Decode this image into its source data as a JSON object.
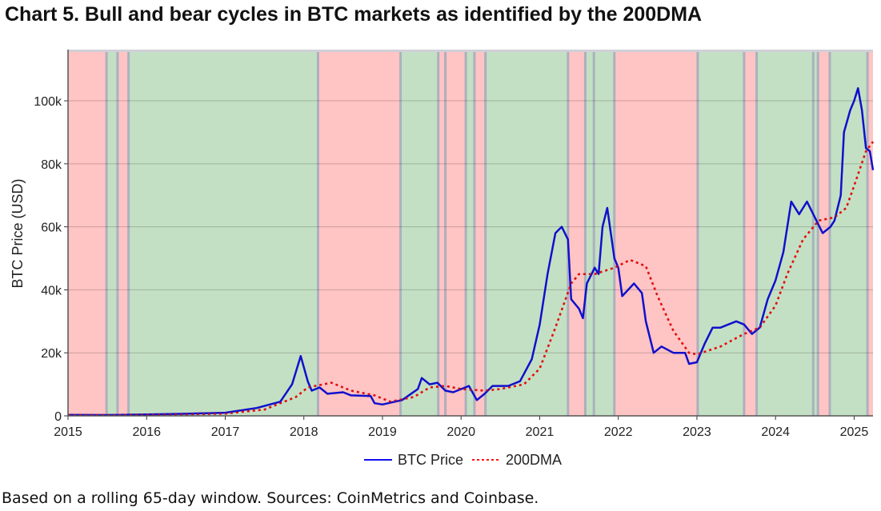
{
  "title": "Chart 5. Bull and bear cycles in BTC markets as identified by the 200DMA",
  "footnote": "Based on a rolling 65-day window. Sources: CoinMetrics and Coinbase.",
  "chart_data": {
    "type": "line",
    "xlabel": "",
    "ylabel": "BTC Price (USD)",
    "xlim": [
      2015.0,
      2025.24
    ],
    "ylim": [
      0,
      115.5
    ],
    "x_ticks": [
      "2015",
      "2016",
      "2017",
      "2018",
      "2019",
      "2020",
      "2021",
      "2022",
      "2023",
      "2024",
      "2025"
    ],
    "y_ticks": [
      "0",
      "20k",
      "40k",
      "60k",
      "80k",
      "100k"
    ],
    "y_unit": "thousand USD",
    "grid": true,
    "legend_position": "bottom",
    "colors": {
      "bull": "#c4e0c4",
      "bear": "#ffc4c4",
      "transition": "#a3a9bd",
      "price": "#1010cc",
      "dma": "#e01010"
    },
    "regimes": [
      {
        "start": 2015.0,
        "end": 2015.49,
        "type": "bear"
      },
      {
        "start": 2015.49,
        "end": 2015.63,
        "type": "bull"
      },
      {
        "start": 2015.63,
        "end": 2015.77,
        "type": "bear"
      },
      {
        "start": 2015.77,
        "end": 2018.18,
        "type": "bull"
      },
      {
        "start": 2018.18,
        "end": 2019.23,
        "type": "bear"
      },
      {
        "start": 2019.23,
        "end": 2019.71,
        "type": "bull"
      },
      {
        "start": 2019.71,
        "end": 2019.8,
        "type": "bear"
      },
      {
        "start": 2019.8,
        "end": 2020.06,
        "type": "bear"
      },
      {
        "start": 2020.06,
        "end": 2020.17,
        "type": "bull"
      },
      {
        "start": 2020.17,
        "end": 2020.31,
        "type": "bear"
      },
      {
        "start": 2020.31,
        "end": 2021.36,
        "type": "bull"
      },
      {
        "start": 2021.36,
        "end": 2021.58,
        "type": "bear"
      },
      {
        "start": 2021.58,
        "end": 2021.69,
        "type": "bull"
      },
      {
        "start": 2021.69,
        "end": 2021.95,
        "type": "bull"
      },
      {
        "start": 2021.95,
        "end": 2023.01,
        "type": "bear"
      },
      {
        "start": 2023.01,
        "end": 2023.6,
        "type": "bull"
      },
      {
        "start": 2023.6,
        "end": 2023.76,
        "type": "bear"
      },
      {
        "start": 2023.76,
        "end": 2024.48,
        "type": "bull"
      },
      {
        "start": 2024.48,
        "end": 2024.54,
        "type": "bull"
      },
      {
        "start": 2024.54,
        "end": 2024.69,
        "type": "bear"
      },
      {
        "start": 2024.69,
        "end": 2025.17,
        "type": "bull"
      },
      {
        "start": 2025.17,
        "end": 2025.24,
        "type": "bear"
      }
    ],
    "series": [
      {
        "name": "BTC Price",
        "x": [
          2015.0,
          2015.5,
          2016.0,
          2016.5,
          2017.0,
          2017.4,
          2017.7,
          2017.85,
          2017.96,
          2018.05,
          2018.1,
          2018.2,
          2018.3,
          2018.5,
          2018.6,
          2018.85,
          2018.9,
          2019.0,
          2019.25,
          2019.45,
          2019.5,
          2019.6,
          2019.7,
          2019.8,
          2019.9,
          2020.1,
          2020.2,
          2020.3,
          2020.4,
          2020.6,
          2020.75,
          2020.9,
          2021.0,
          2021.1,
          2021.2,
          2021.28,
          2021.36,
          2021.4,
          2021.5,
          2021.55,
          2021.6,
          2021.7,
          2021.75,
          2021.8,
          2021.86,
          2021.95,
          2022.0,
          2022.05,
          2022.2,
          2022.3,
          2022.35,
          2022.45,
          2022.55,
          2022.7,
          2022.85,
          2022.9,
          2023.0,
          2023.1,
          2023.2,
          2023.3,
          2023.5,
          2023.6,
          2023.7,
          2023.8,
          2023.9,
          2024.0,
          2024.1,
          2024.2,
          2024.3,
          2024.4,
          2024.5,
          2024.6,
          2024.7,
          2024.75,
          2024.83,
          2024.87,
          2024.95,
          2025.0,
          2025.05,
          2025.1,
          2025.15,
          2025.2,
          2025.24
        ],
        "values": [
          0.3,
          0.25,
          0.43,
          0.65,
          1.0,
          2.5,
          4.5,
          10,
          19,
          11,
          8,
          9,
          7,
          7.5,
          6.5,
          6.3,
          4,
          3.6,
          5,
          8.5,
          12,
          10,
          10.5,
          8,
          7.5,
          9.5,
          5,
          7,
          9.5,
          9.5,
          11,
          18,
          29,
          45,
          58,
          60,
          56,
          37,
          34,
          31,
          42,
          47,
          45,
          60,
          66,
          50,
          47,
          38,
          42,
          39,
          30,
          20,
          22,
          20,
          20,
          16.5,
          17,
          23,
          28,
          28,
          30,
          29,
          26,
          28,
          37,
          43,
          52,
          68,
          64,
          68,
          63,
          58,
          60,
          62,
          70,
          90,
          97,
          100,
          104,
          97,
          85,
          84,
          78
        ]
      },
      {
        "name": "200DMA",
        "x": [
          2015.0,
          2015.5,
          2016.0,
          2016.5,
          2017.0,
          2017.5,
          2017.9,
          2018.05,
          2018.35,
          2018.6,
          2018.9,
          2019.1,
          2019.4,
          2019.6,
          2019.8,
          2020.0,
          2020.3,
          2020.5,
          2020.8,
          2021.0,
          2021.2,
          2021.4,
          2021.5,
          2021.7,
          2021.95,
          2022.15,
          2022.35,
          2022.5,
          2022.7,
          2022.9,
          2023.0,
          2023.3,
          2023.6,
          2023.8,
          2024.0,
          2024.15,
          2024.35,
          2024.55,
          2024.75,
          2024.9,
          2025.0,
          2025.15,
          2025.24
        ],
        "values": [
          0.3,
          0.27,
          0.38,
          0.5,
          0.7,
          2,
          6,
          9,
          10.5,
          8,
          6.5,
          4.5,
          6,
          9,
          9.5,
          8.5,
          8,
          8.5,
          10,
          15,
          28,
          42,
          45,
          45,
          47,
          49.5,
          47.5,
          38,
          27,
          20,
          19.5,
          22,
          26,
          28,
          35,
          45,
          56,
          62,
          63,
          66,
          73,
          84,
          87
        ]
      }
    ]
  }
}
